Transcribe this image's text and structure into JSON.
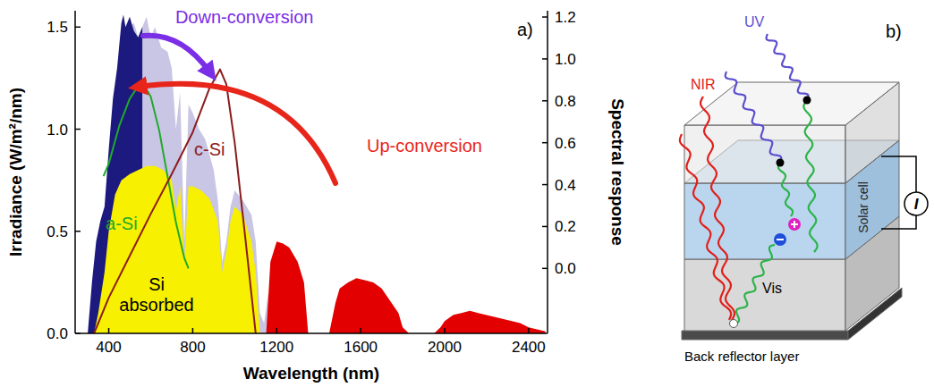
{
  "chart_data": {
    "type": "area",
    "panel_label": "a)",
    "xlabel": "Wavelength (nm)",
    "ylabel": "Irradiance (W/m²/nm)",
    "y2label": "Spectral response",
    "xlim": [
      240,
      2490
    ],
    "xticks": [
      400,
      800,
      1200,
      1600,
      2000,
      2400
    ],
    "ylim": [
      0,
      1.58
    ],
    "yticks": [
      {
        "value": 0,
        "label": "0.0"
      },
      {
        "value": 0.5,
        "label": "0.5"
      },
      {
        "value": 1,
        "label": "1.0"
      },
      {
        "value": 1.5,
        "label": "1.5"
      }
    ],
    "y2lim": [
      -0.31,
      1.23
    ],
    "y2ticks": [
      {
        "value": 0,
        "label": "0.0"
      },
      {
        "value": 0.2,
        "label": "0.2"
      },
      {
        "value": 0.4,
        "label": "0.4"
      },
      {
        "value": 0.6,
        "label": "0.6"
      },
      {
        "value": 0.8,
        "label": "0.8"
      },
      {
        "value": 1,
        "label": "1.0"
      },
      {
        "value": 1.2,
        "label": "1.2"
      }
    ],
    "series": [
      {
        "type": "area",
        "color": "#c9c5e4",
        "x": [
          500,
          520,
          540,
          560,
          580,
          600,
          620,
          650,
          680,
          700,
          720,
          740,
          760,
          780,
          800,
          830,
          860,
          900,
          920,
          940,
          960,
          980,
          1000,
          1040,
          1080,
          1100,
          1120,
          1140,
          1160
        ],
        "values": [
          1.5,
          1.52,
          1.45,
          1.5,
          1.55,
          1.45,
          1.5,
          1.4,
          1.38,
          1.3,
          1.0,
          1.18,
          0.45,
          1.12,
          1.08,
          1.0,
          0.95,
          0.8,
          0.65,
          0.35,
          0.45,
          0.62,
          0.7,
          0.65,
          0.58,
          0.45,
          0.1,
          0.05,
          0.2
        ]
      },
      {
        "type": "area",
        "color": "#1c1a7e",
        "x": [
          300,
          320,
          340,
          360,
          380,
          400,
          420,
          440,
          460,
          470,
          480,
          500,
          520,
          540,
          560
        ],
        "values": [
          0.0,
          0.25,
          0.45,
          0.55,
          0.62,
          0.9,
          1.15,
          1.3,
          1.52,
          1.56,
          1.5,
          1.55,
          1.48,
          1.45,
          1.5
        ]
      },
      {
        "type": "area",
        "color": "#f7f000",
        "x": [
          330,
          350,
          380,
          400,
          430,
          460,
          500,
          540,
          580,
          620,
          660,
          700,
          720,
          740,
          760,
          780,
          800,
          840,
          880,
          920,
          940,
          960,
          980,
          1000,
          1040,
          1080,
          1100,
          1120
        ],
        "values": [
          0.0,
          0.1,
          0.3,
          0.5,
          0.68,
          0.75,
          0.78,
          0.8,
          0.82,
          0.82,
          0.8,
          0.75,
          0.6,
          0.72,
          0.35,
          0.72,
          0.72,
          0.7,
          0.66,
          0.55,
          0.3,
          0.4,
          0.55,
          0.62,
          0.58,
          0.45,
          0.3,
          0.0
        ]
      },
      {
        "type": "area",
        "color": "#e20000",
        "x": [
          1150,
          1170,
          1200,
          1230,
          1260,
          1300,
          1330,
          1350,
          1400,
          1450,
          1480,
          1500,
          1540,
          1580,
          1620,
          1660,
          1700,
          1740,
          1780,
          1800,
          1830,
          1950,
          1980,
          2000,
          2040,
          2080,
          2120,
          2160,
          2200,
          2240,
          2280,
          2320,
          2360,
          2400,
          2440,
          2480
        ],
        "values": [
          0.0,
          0.35,
          0.45,
          0.44,
          0.42,
          0.35,
          0.25,
          0.0,
          0.0,
          0.0,
          0.15,
          0.22,
          0.25,
          0.27,
          0.26,
          0.25,
          0.22,
          0.16,
          0.1,
          0.03,
          0.0,
          0.0,
          0.03,
          0.06,
          0.09,
          0.1,
          0.11,
          0.1,
          0.09,
          0.08,
          0.07,
          0.06,
          0.05,
          0.03,
          0.02,
          0.01
        ]
      },
      {
        "type": "line",
        "axis": "y2",
        "color": "#1faa2a",
        "x": [
          375,
          400,
          450,
          500,
          540,
          570,
          600,
          640,
          680,
          720,
          760,
          780
        ],
        "values": [
          0.44,
          0.5,
          0.68,
          0.81,
          0.87,
          0.87,
          0.82,
          0.66,
          0.44,
          0.22,
          0.05,
          0.0
        ]
      },
      {
        "type": "line",
        "axis": "y2",
        "color": "#8b1c1c",
        "x": [
          330,
          400,
          500,
          600,
          700,
          800,
          880,
          930,
          960,
          1000,
          1050,
          1100
        ],
        "values": [
          -0.31,
          -0.14,
          0.06,
          0.26,
          0.45,
          0.65,
          0.86,
          0.95,
          0.88,
          0.6,
          0.15,
          -0.31
        ]
      }
    ],
    "annotations": [
      {
        "text": "Down-conversion",
        "x": 717,
        "y": 1.55,
        "color": "#7a2ee6"
      },
      {
        "text": "c-Si",
        "x": 807,
        "y": 0.9,
        "color": "#8b1c1c"
      },
      {
        "text": "Up-conversion",
        "x": 1629,
        "y": 0.92,
        "color": "#e8251a"
      },
      {
        "text": "a-Si",
        "x": 385,
        "y": 0.54,
        "color": "#1faa2a"
      },
      {
        "text": "Si absorbed",
        "x": 628,
        "y": 0.24,
        "color": "#000000"
      }
    ]
  },
  "diagram": {
    "panel_label": "b)",
    "uv_label": "UV",
    "nir_label": "NIR",
    "vis_label": "Vis",
    "cell_label": "Solar cell",
    "current_label": "I",
    "reflector_label": "Back reflector layer"
  }
}
